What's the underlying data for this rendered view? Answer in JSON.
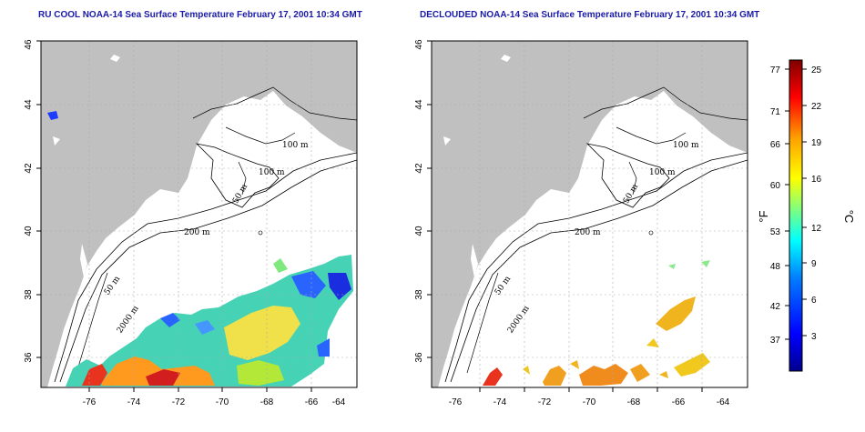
{
  "titles": {
    "left": "RU COOL NOAA-14 Sea Surface Temperature February 17, 2001 10:34 GMT",
    "right": "DECLOUDED NOAA-14 Sea Surface Temperature February 17, 2001 10:34 GMT"
  },
  "map": {
    "lon_range": [
      -77,
      -63
    ],
    "lat_range": [
      35,
      46
    ],
    "lon_ticks": [
      "-76",
      "-74",
      "-72",
      "-70",
      "-68",
      "-66",
      "-64"
    ],
    "lat_ticks": [
      "36",
      "38",
      "40",
      "42",
      "44",
      "46"
    ],
    "contour_labels": [
      "100 m",
      "100 m",
      "50 m",
      "200 m",
      "50 m",
      "2000 m"
    ],
    "land_color": "#c0c0c0",
    "ocean_color": "#ffffff",
    "grid": "dotted"
  },
  "colorbar": {
    "fahrenheit_label": "°F",
    "celsius_label": "°C",
    "fahrenheit_ticks": [
      "77",
      "71",
      "66",
      "60",
      "53",
      "48",
      "42",
      "37"
    ],
    "celsius_ticks": [
      "25",
      "22",
      "19",
      "16",
      "12",
      "9",
      "6",
      "3"
    ],
    "celsius_range": [
      0,
      26
    ],
    "colors": [
      "#00008f",
      "#0000ff",
      "#007fff",
      "#00ffff",
      "#7fff7f",
      "#ffff00",
      "#ff7f00",
      "#ff0000",
      "#7f0000"
    ]
  }
}
